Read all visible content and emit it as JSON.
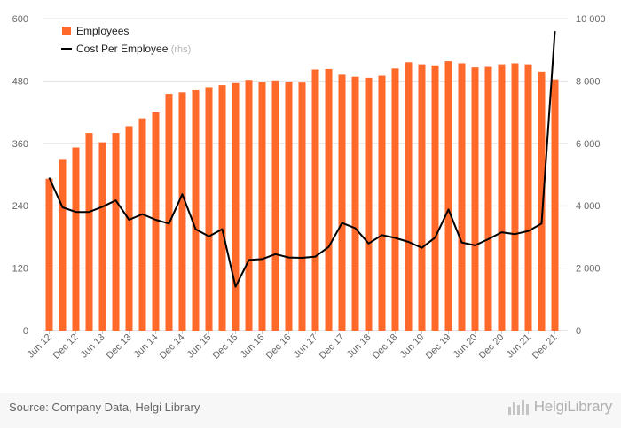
{
  "chart_data": {
    "type": "bar+line",
    "categories": [
      "Jun 12",
      "Sep 12",
      "Dec 12",
      "Mar 13",
      "Jun 13",
      "Sep 13",
      "Dec 13",
      "Mar 14",
      "Jun 14",
      "Sep 14",
      "Dec 14",
      "Mar 15",
      "Jun 15",
      "Sep 15",
      "Dec 15",
      "Mar 16",
      "Jun 16",
      "Sep 16",
      "Dec 16",
      "Mar 17",
      "Jun 17",
      "Sep 17",
      "Dec 17",
      "Mar 18",
      "Jun 18",
      "Sep 18",
      "Dec 18",
      "Mar 19",
      "Jun 19",
      "Sep 19",
      "Dec 19",
      "Mar 20",
      "Jun 20",
      "Sep 20",
      "Dec 20",
      "Mar 21",
      "Jun 21",
      "Sep 21",
      "Dec 21"
    ],
    "tick_labels": [
      "Jun 12",
      "Dec 12",
      "Jun 13",
      "Dec 13",
      "Jun 14",
      "Dec 14",
      "Jun 15",
      "Dec 15",
      "Jun 16",
      "Dec 16",
      "Jun 17",
      "Dec 17",
      "Jun 18",
      "Dec 18",
      "Jun 19",
      "Dec 19",
      "Jun 20",
      "Dec 20",
      "Jun 21",
      "Dec 21"
    ],
    "series": [
      {
        "name": "Employees",
        "type": "bar",
        "axis": "left",
        "color": "#ff6a2b",
        "values": [
          292,
          330,
          352,
          380,
          362,
          380,
          393,
          408,
          421,
          455,
          458,
          462,
          468,
          472,
          476,
          482,
          478,
          481,
          479,
          477,
          502,
          503,
          492,
          488,
          486,
          490,
          504,
          516,
          512,
          510,
          518,
          514,
          506,
          507,
          512,
          514,
          512,
          498,
          483
        ]
      },
      {
        "name": "Cost Per Employee",
        "name_suffix": "(rhs)",
        "type": "line",
        "axis": "right",
        "color": "#000000",
        "values": [
          4900,
          3950,
          3800,
          3800,
          3970,
          4170,
          3550,
          3730,
          3550,
          3430,
          4370,
          3250,
          3020,
          3250,
          1400,
          2260,
          2290,
          2450,
          2340,
          2330,
          2370,
          2680,
          3450,
          3280,
          2790,
          3060,
          2970,
          2840,
          2650,
          2980,
          3880,
          2820,
          2730,
          2930,
          3150,
          3090,
          3190,
          3430,
          9600
        ]
      }
    ],
    "y_left": {
      "min": 0,
      "max": 600,
      "ticks": [
        "0",
        "120",
        "240",
        "360",
        "480",
        "600"
      ]
    },
    "y_right": {
      "min": 0,
      "max": 10000,
      "ticks": [
        "0",
        "2 000",
        "4 000",
        "6 000",
        "8 000",
        "10 000"
      ]
    },
    "legend_position": "top-left",
    "grid": "horizontal"
  },
  "footer": {
    "source": "Source: Company Data, Helgi Library",
    "brand": "HelgiLibrary"
  }
}
